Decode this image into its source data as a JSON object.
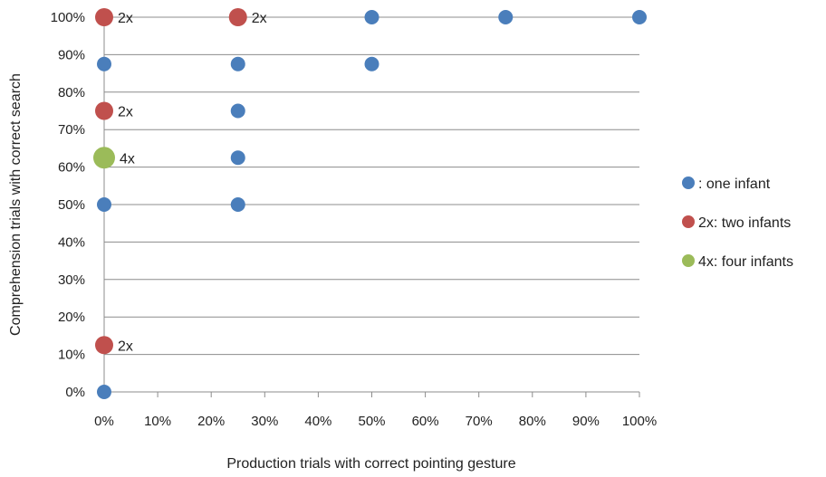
{
  "chart_data": {
    "type": "scatter",
    "xlabel": "Production trials with correct pointing gesture",
    "ylabel": "Comprehension trials with correct search",
    "xlim": [
      0,
      100
    ],
    "ylim": [
      0,
      100
    ],
    "x_ticks": [
      "0%",
      "10%",
      "20%",
      "30%",
      "40%",
      "50%",
      "60%",
      "70%",
      "80%",
      "90%",
      "100%"
    ],
    "y_ticks": [
      "0%",
      "10%",
      "20%",
      "30%",
      "40%",
      "50%",
      "60%",
      "70%",
      "80%",
      "90%",
      "100%"
    ],
    "grid": "horizontal",
    "legend_position": "right",
    "legend": [
      {
        "key": "one",
        "label": ": one infant",
        "color": "#4a7ebb"
      },
      {
        "key": "two",
        "label": "2x: two infants",
        "color": "#c0504d"
      },
      {
        "key": "four",
        "label": "4x: four infants",
        "color": "#9bbb59"
      }
    ],
    "points": [
      {
        "x": 0,
        "y": 100,
        "group": "two",
        "label": "2x"
      },
      {
        "x": 25,
        "y": 100,
        "group": "two",
        "label": "2x"
      },
      {
        "x": 50,
        "y": 100,
        "group": "one"
      },
      {
        "x": 75,
        "y": 100,
        "group": "one"
      },
      {
        "x": 100,
        "y": 100,
        "group": "one"
      },
      {
        "x": 0,
        "y": 87.5,
        "group": "one"
      },
      {
        "x": 25,
        "y": 87.5,
        "group": "one"
      },
      {
        "x": 50,
        "y": 87.5,
        "group": "one"
      },
      {
        "x": 0,
        "y": 75,
        "group": "two",
        "label": "2x"
      },
      {
        "x": 25,
        "y": 75,
        "group": "one"
      },
      {
        "x": 0,
        "y": 62.5,
        "group": "four",
        "label": "4x"
      },
      {
        "x": 25,
        "y": 62.5,
        "group": "one"
      },
      {
        "x": 0,
        "y": 50,
        "group": "one"
      },
      {
        "x": 25,
        "y": 50,
        "group": "one"
      },
      {
        "x": 0,
        "y": 12.5,
        "group": "two",
        "label": "2x"
      },
      {
        "x": 0,
        "y": 0,
        "group": "one"
      }
    ]
  }
}
